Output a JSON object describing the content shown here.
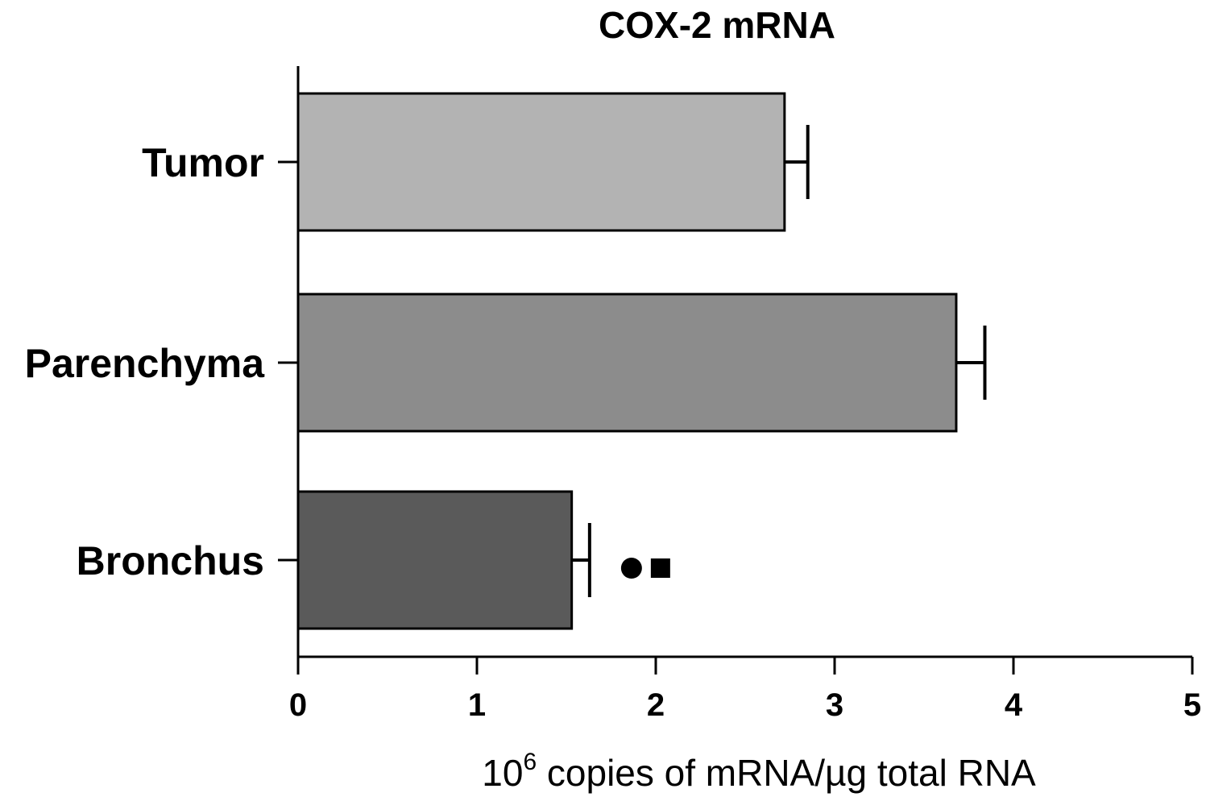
{
  "chart_data": {
    "type": "bar",
    "orientation": "horizontal",
    "title": "COX-2 mRNA",
    "xlabel": {
      "base": "10",
      "exponent": "6",
      "rest": " copies of mRNA/µg total RNA"
    },
    "ylabel": "",
    "xlim": [
      0,
      5
    ],
    "xticks": [
      "0",
      "1",
      "2",
      "3",
      "4",
      "5"
    ],
    "categories": [
      "Tumor",
      "Parenchyma",
      "Bronchus"
    ],
    "values": [
      2.72,
      3.68,
      1.53
    ],
    "errors": [
      0.13,
      0.16,
      0.1
    ],
    "bar_colors": [
      "#b3b3b3",
      "#8c8c8c",
      "#5a5a5a"
    ],
    "annotations": [
      {
        "category": "Bronchus",
        "symbol": "circle",
        "color": "#000000"
      },
      {
        "category": "Bronchus",
        "symbol": "square",
        "color": "#000000"
      }
    ],
    "grid": false,
    "legend": "none"
  }
}
